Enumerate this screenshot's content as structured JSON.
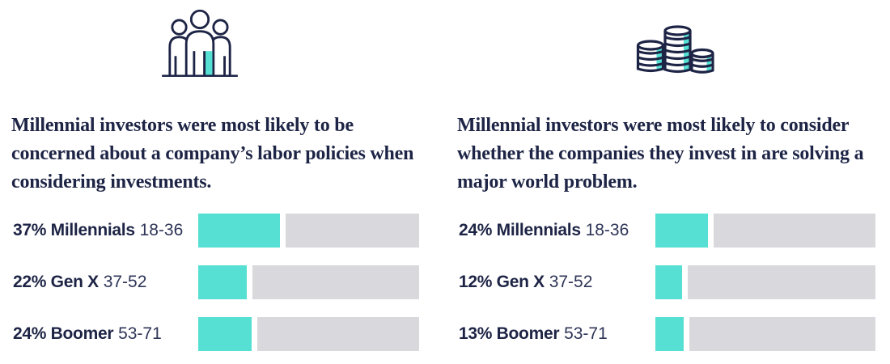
{
  "colors": {
    "navy": "#1D2445",
    "navy-soft": "#2E3557",
    "teal": "#56DFD3",
    "gray": "#D9D9DD"
  },
  "columns": [
    {
      "icon": "people-group-icon",
      "description": "Millennial investors were most likely to be concerned about a company’s labor policies when considering investments.",
      "rows": [
        {
          "label_bold": "37% Millennials",
          "label_range": "18-36",
          "value": 37
        },
        {
          "label_bold": "22% Gen X",
          "label_range": "37-52",
          "value": 22
        },
        {
          "label_bold": "24% Boomer",
          "label_range": "53-71",
          "value": 24
        }
      ]
    },
    {
      "icon": "coin-stacks-icon",
      "description": "Millennial investors were most likely to consider whether the companies they invest in are solving a major world problem.",
      "rows": [
        {
          "label_bold": "24% Millennials",
          "label_range": "18-36",
          "value": 24
        },
        {
          "label_bold": "12% Gen X",
          "label_range": "37-52",
          "value": 12
        },
        {
          "label_bold": "13% Boomer",
          "label_range": "53-71",
          "value": 13
        }
      ]
    }
  ],
  "chart_data": [
    {
      "type": "bar",
      "orientation": "horizontal",
      "title": "Millennial investors were most likely to be concerned about a company’s labor policies when considering investments.",
      "categories": [
        "Millennials 18-36",
        "Gen X 37-52",
        "Boomer 53-71"
      ],
      "values": [
        37,
        22,
        24
      ],
      "value_labels": [
        "37%",
        "22%",
        "24%"
      ],
      "unit": "percent",
      "xlim": [
        0,
        100
      ],
      "bar_color": "#56DFD3",
      "track_color": "#D9D9DD",
      "grid": false,
      "legend": false
    },
    {
      "type": "bar",
      "orientation": "horizontal",
      "title": "Millennial investors were most likely to consider whether the companies they invest in are solving a major world problem.",
      "categories": [
        "Millennials 18-36",
        "Gen X 37-52",
        "Boomer 53-71"
      ],
      "values": [
        24,
        12,
        13
      ],
      "value_labels": [
        "24%",
        "12%",
        "13%"
      ],
      "unit": "percent",
      "xlim": [
        0,
        100
      ],
      "bar_color": "#56DFD3",
      "track_color": "#D9D9DD",
      "grid": false,
      "legend": false
    }
  ]
}
